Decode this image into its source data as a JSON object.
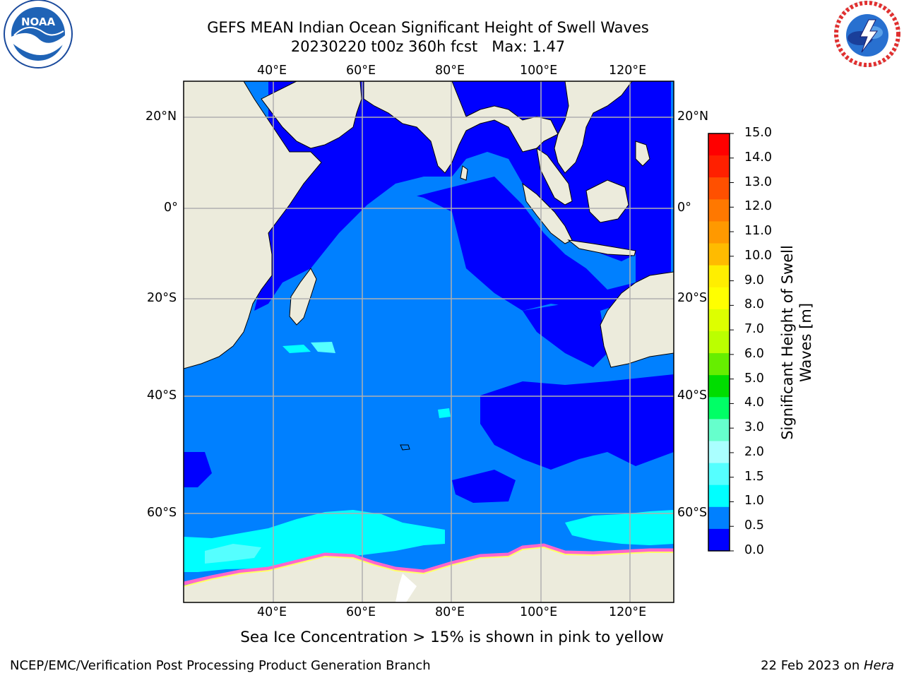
{
  "header": {
    "title_line1": "GEFS MEAN Indian Ocean Significant Height of Swell Waves",
    "title_line2": "20230220 t00z 360h fcst   Max: 1.47"
  },
  "logos": {
    "left": "NOAA",
    "right": "NATIONAL WEATHER SERVICE"
  },
  "map": {
    "lon_labels": [
      "40°E",
      "60°E",
      "80°E",
      "100°E",
      "120°E"
    ],
    "lat_labels": [
      "20°N",
      "0°",
      "20°S",
      "40°S",
      "60°S"
    ],
    "note": "Sea Ice Concentration > 15% is shown in pink to yellow",
    "colors": {
      "land": "#ecebdc",
      "ocean_low": "#0000ff",
      "ocean_mid": "#0080ff",
      "ocean_cyan": "#00ffff",
      "sea_ice_pink": "#ff66cc",
      "sea_ice_yellow": "#ffff66",
      "grid": "#b0b0b0"
    }
  },
  "colorbar": {
    "label": "Significant Height of Swell Waves [m]",
    "label_line1": "Significant Height of Swell",
    "label_line2": "Waves [m]",
    "ticks": [
      "15.0",
      "14.0",
      "13.0",
      "12.0",
      "11.0",
      "10.0",
      "9.0",
      "8.0",
      "7.0",
      "6.0",
      "5.0",
      "4.0",
      "3.0",
      "2.0",
      "1.5",
      "1.0",
      "0.5",
      "0.0"
    ],
    "colors": [
      "#ff0000",
      "#ff2000",
      "#ff5000",
      "#ff7800",
      "#ff9900",
      "#ffbb00",
      "#ffee00",
      "#ffff00",
      "#ddff00",
      "#bbff00",
      "#66ee00",
      "#00dd00",
      "#00ff66",
      "#66ffcc",
      "#aaffff",
      "#55ffff",
      "#00ffff",
      "#0080ff",
      "#0000ff"
    ]
  },
  "footer": {
    "left": "NCEP/EMC/Verification Post Processing Product Generation Branch",
    "date": "22 Feb 2023 on ",
    "machine": "Hera"
  }
}
